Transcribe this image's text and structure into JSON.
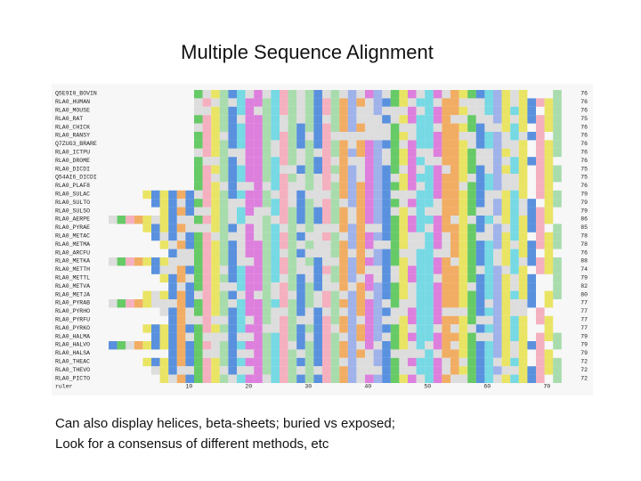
{
  "title": "Multiple Sequence Alignment",
  "alignment": {
    "rows": [
      {
        "name": "Q5E9I0_BOVIN",
        "length": 76
      },
      {
        "name": "RLA0_HUMAN",
        "length": 76
      },
      {
        "name": "RLA0_MOUSE",
        "length": 76
      },
      {
        "name": "RLA0_RAT",
        "length": 75
      },
      {
        "name": "RLA0_CHICK",
        "length": 76
      },
      {
        "name": "RLA0_RANSY",
        "length": 76
      },
      {
        "name": "Q7ZUG3_BRARE",
        "length": 76
      },
      {
        "name": "RLA0_ICTPU",
        "length": 76
      },
      {
        "name": "RLA0_DROME",
        "length": 76
      },
      {
        "name": "RLA0_DICDI",
        "length": 75
      },
      {
        "name": "Q54AI6_DICDI",
        "length": 75
      },
      {
        "name": "RLA0_PLAF8",
        "length": 76
      },
      {
        "name": "RLA0_SULAC",
        "length": 79
      },
      {
        "name": "RLA0_SULTO",
        "length": 79
      },
      {
        "name": "RLA0_SULSO",
        "length": 79
      },
      {
        "name": "RLA0_AERPE",
        "length": 86
      },
      {
        "name": "RLA0_PYRAE",
        "length": 85
      },
      {
        "name": "RLA0_METAC",
        "length": 78
      },
      {
        "name": "RLA0_METMA",
        "length": 78
      },
      {
        "name": "RLA0_ARCFU",
        "length": 76
      },
      {
        "name": "RLA0_METKA",
        "length": 88
      },
      {
        "name": "RLA0_METTH",
        "length": 74
      },
      {
        "name": "RLA0_METTL",
        "length": 79
      },
      {
        "name": "RLA0_METVA",
        "length": 82
      },
      {
        "name": "RLA0_METJA",
        "length": 80
      },
      {
        "name": "RLA0_PYRAB",
        "length": 77
      },
      {
        "name": "RLA0_PYRHO",
        "length": 77
      },
      {
        "name": "RLA0_PYRFU",
        "length": 77
      },
      {
        "name": "RLA0_PYRKO",
        "length": 77
      },
      {
        "name": "RLA0_HALMA",
        "length": 79
      },
      {
        "name": "RLA0_HALVO",
        "length": 79
      },
      {
        "name": "RLA0_HALSA",
        "length": 79
      },
      {
        "name": "RLA0_THEAC",
        "length": 72
      },
      {
        "name": "RLA0_THEVO",
        "length": 72
      },
      {
        "name": "RLA0_PICTO",
        "length": 72
      }
    ],
    "ruler_label": "ruler",
    "ruler_ticks": [
      10,
      20,
      30,
      40,
      50,
      60,
      70
    ]
  },
  "caption": {
    "lines": [
      "Can also display helices, beta-sheets; buried vs exposed;",
      "Look for a consensus of different methods, etc"
    ]
  }
}
